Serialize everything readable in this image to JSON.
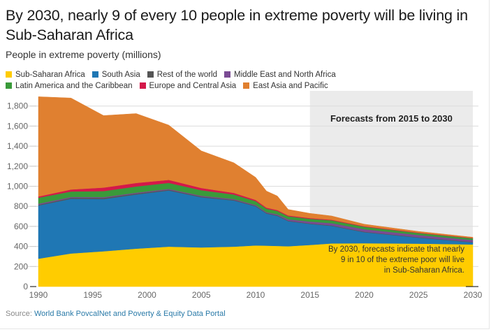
{
  "header": {
    "title": "By 2030, nearly 9 of every 10 people in extreme poverty will be living in Sub-Saharan Africa",
    "subtitle": "People in extreme poverty (millions)"
  },
  "legend": [
    {
      "name": "Sub-Saharan Africa",
      "color": "#ffcc00"
    },
    {
      "name": "South Asia",
      "color": "#1f77b4"
    },
    {
      "name": "Rest of the world",
      "color": "#555555"
    },
    {
      "name": "Middle East and North Africa",
      "color": "#7b4b94"
    },
    {
      "name": "Latin America and the Caribbean",
      "color": "#3a9a3a"
    },
    {
      "name": "Europe and Central Asia",
      "color": "#d4184a"
    },
    {
      "name": "East Asia and Pacific",
      "color": "#e08030"
    }
  ],
  "source": {
    "prefix": "Source: ",
    "link_text": "World Bank PovcalNet and Poverty & Equity Data Portal"
  },
  "chart_data": {
    "type": "area",
    "stacked": true,
    "title": "By 2030, nearly 9 of every 10 people in extreme poverty will be living in Sub-Saharan Africa",
    "ylabel": "People in extreme poverty (millions)",
    "xlabel": "",
    "x": [
      1990,
      1993,
      1996,
      1999,
      2002,
      2005,
      2008,
      2010,
      2011,
      2012,
      2013,
      2015,
      2017,
      2020,
      2025,
      2030
    ],
    "series": [
      {
        "name": "Sub-Saharan Africa",
        "color": "#ffcc00",
        "values": [
          278,
          330,
          352,
          378,
          398,
          390,
          398,
          410,
          408,
          405,
          402,
          415,
          430,
          432,
          428,
          420
        ]
      },
      {
        "name": "South Asia",
        "color": "#1f77b4",
        "values": [
          530,
          545,
          520,
          540,
          560,
          500,
          460,
          390,
          320,
          300,
          250,
          210,
          175,
          110,
          60,
          20
        ]
      },
      {
        "name": "Rest of the world",
        "color": "#555555",
        "values": [
          8,
          10,
          12,
          10,
          8,
          8,
          7,
          6,
          6,
          6,
          5,
          5,
          5,
          5,
          4,
          4
        ]
      },
      {
        "name": "Middle East and North Africa",
        "color": "#7b4b94",
        "values": [
          10,
          8,
          8,
          8,
          8,
          8,
          8,
          8,
          8,
          10,
          14,
          18,
          22,
          25,
          22,
          20
        ]
      },
      {
        "name": "Latin America and the Caribbean",
        "color": "#3a9a3a",
        "values": [
          60,
          55,
          60,
          62,
          60,
          55,
          45,
          38,
          35,
          33,
          30,
          28,
          28,
          25,
          20,
          17
        ]
      },
      {
        "name": "Europe and Central Asia",
        "color": "#d4184a",
        "values": [
          12,
          20,
          35,
          35,
          30,
          22,
          16,
          12,
          10,
          9,
          8,
          7,
          6,
          5,
          4,
          3
        ]
      },
      {
        "name": "East Asia and Pacific",
        "color": "#e08030",
        "values": [
          995,
          912,
          718,
          692,
          546,
          370,
          300,
          225,
          165,
          140,
          60,
          47,
          38,
          20,
          12,
          8
        ]
      }
    ],
    "xlim": [
      1990,
      2030
    ],
    "ylim": [
      0,
      1900
    ],
    "xticks": [
      1990,
      1995,
      2000,
      2005,
      2010,
      2015,
      2020,
      2025,
      2030
    ],
    "yticks": [
      0,
      200,
      400,
      600,
      800,
      1000,
      1200,
      1400,
      1600,
      1800
    ],
    "ytick_labels": [
      "0",
      "200",
      "400",
      "600",
      "800",
      "1,000",
      "1,200",
      "1,400",
      "1,600",
      "1,800"
    ],
    "grid": true,
    "legend_position": "top-left",
    "forecast_region": {
      "from": 2015,
      "to": 2030,
      "label": "Forecasts from 2015 to 2030",
      "color": "#ebebeb"
    },
    "annotation": {
      "lines": [
        "By 2030, forecasts indicate that nearly",
        "9 in 10 of the extreme poor will live",
        "in Sub-Saharan Africa."
      ],
      "x": 2030,
      "y": 300
    }
  }
}
